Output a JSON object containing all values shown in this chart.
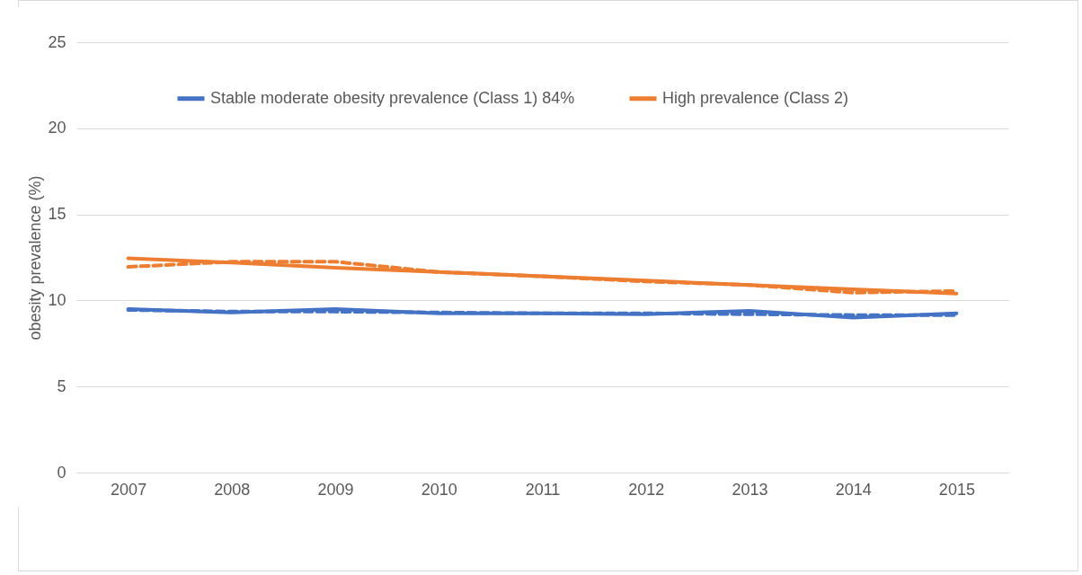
{
  "chart_data": {
    "type": "line",
    "ylabel": "obesity prevalence (%)",
    "categories": [
      "2007",
      "2008",
      "2009",
      "2010",
      "2011",
      "2012",
      "2013",
      "2014",
      "2015"
    ],
    "series": [
      {
        "name": "Stable moderate obesity prevalence (Class 1) 84%",
        "color": "#4472c4",
        "line_style": "solid",
        "values": [
          9.5,
          9.3,
          9.5,
          9.25,
          9.25,
          9.2,
          9.4,
          9.0,
          9.25
        ]
      },
      {
        "name": "High prevalence (Class 2)",
        "color": "#ed7d31",
        "line_style": "solid",
        "values": [
          12.45,
          12.2,
          11.9,
          11.65,
          11.4,
          11.15,
          10.9,
          10.65,
          10.4
        ]
      },
      {
        "color": "#4472c4",
        "line_style": "dashed",
        "values": [
          9.45,
          9.35,
          9.35,
          9.3,
          9.25,
          9.25,
          9.2,
          9.15,
          9.15
        ]
      },
      {
        "color": "#ed7d31",
        "line_style": "dashed",
        "values": [
          11.95,
          12.25,
          12.25,
          11.65,
          11.4,
          11.1,
          10.9,
          10.45,
          10.55
        ]
      }
    ],
    "ylim": [
      0,
      25
    ],
    "yticks": [
      0,
      5,
      10,
      15,
      20,
      25
    ],
    "grid": "y",
    "legend": "top"
  }
}
